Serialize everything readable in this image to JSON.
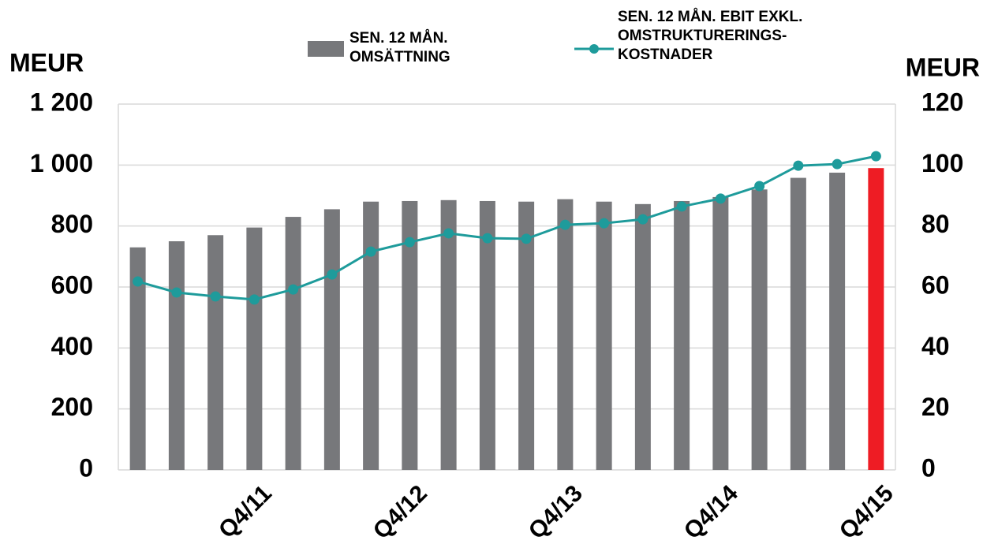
{
  "chart_data": {
    "type": "bar_line",
    "y_label": "MEUR",
    "y2_label": "MEUR",
    "categories": [
      null,
      null,
      null,
      "Q4/11",
      null,
      null,
      null,
      "Q4/12",
      null,
      null,
      null,
      "Q4/13",
      null,
      null,
      null,
      "Q4/14",
      null,
      null,
      null,
      "Q4/15"
    ],
    "series": [
      {
        "name": "SEN. 12 MÅN. OMSÄTTNING",
        "type": "bar",
        "color": "#77787b",
        "colors": [
          "#77787b",
          "#77787b",
          "#77787b",
          "#77787b",
          "#77787b",
          "#77787b",
          "#77787b",
          "#77787b",
          "#77787b",
          "#77787b",
          "#77787b",
          "#77787b",
          "#77787b",
          "#77787b",
          "#77787b",
          "#77787b",
          "#77787b",
          "#77787b",
          "#77787b",
          "#ee1c24"
        ],
        "values": [
          730,
          750,
          770,
          795,
          830,
          855,
          880,
          882,
          885,
          882,
          880,
          888,
          880,
          872,
          882,
          895,
          920,
          958,
          975,
          990
        ]
      },
      {
        "name": "SEN. 12 MÅN. EBIT EXKL. OMSTRUKTURERINGS-KOSTNADER",
        "type": "line",
        "axis": "y2",
        "color": "#1e9b9b",
        "values": [
          61.8,
          58.2,
          56.9,
          55.9,
          59.2,
          64.1,
          71.6,
          74.7,
          77.6,
          76.0,
          75.8,
          80.4,
          80.9,
          82.2,
          86.4,
          89.0,
          93.1,
          99.8,
          100.3,
          102.9
        ]
      }
    ],
    "ylim": [
      0,
      1200
    ],
    "yticks": [
      0,
      200,
      400,
      600,
      800,
      {
        "value": 1000,
        "label": "1 000"
      },
      {
        "value": 1200,
        "label": "1 200"
      }
    ],
    "y2lim": [
      0,
      120
    ],
    "y2ticks": [
      0,
      20,
      40,
      60,
      80,
      100,
      120
    ],
    "grid": true
  }
}
